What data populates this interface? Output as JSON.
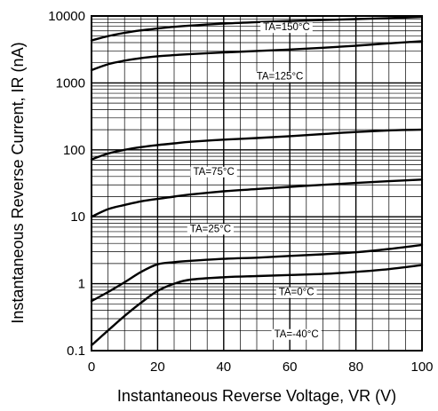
{
  "chart_data": {
    "type": "line",
    "title": "",
    "xlabel": "Instantaneous Reverse Voltage, VR (V)",
    "ylabel": "Instantaneous Reverse Current, IR (nA)",
    "xlim": [
      0,
      100
    ],
    "ylim": [
      0.1,
      10000
    ],
    "yscale": "log",
    "grid": true,
    "x_ticks": [
      0,
      20,
      40,
      60,
      80,
      100
    ],
    "x_tick_labels": [
      "0",
      "20",
      "40",
      "60",
      "80",
      "100"
    ],
    "y_ticks": [
      0.1,
      1,
      10,
      100,
      1000,
      10000
    ],
    "y_tick_labels": [
      "0.1",
      "1",
      "10",
      "100",
      "1000",
      "10000"
    ],
    "x": [
      0,
      5,
      10,
      15,
      20,
      25,
      30,
      40,
      50,
      60,
      70,
      80,
      90,
      100
    ],
    "series": [
      {
        "name": "TA=150°C",
        "label_display": "TA=150°C",
        "values": [
          4300,
          5000,
          5600,
          6100,
          6500,
          6900,
          7200,
          7700,
          8100,
          8400,
          8700,
          9000,
          9300,
          9700
        ]
      },
      {
        "name": "TA=125°C",
        "label_display": "TA=125°C",
        "values": [
          1550,
          1900,
          2150,
          2350,
          2500,
          2600,
          2700,
          2850,
          3000,
          3150,
          3350,
          3600,
          3900,
          4200
        ]
      },
      {
        "name": "TA=75°C",
        "label_display": "TA=75°C",
        "values": [
          72,
          88,
          100,
          110,
          118,
          125,
          132,
          142,
          150,
          160,
          172,
          185,
          195,
          200
        ]
      },
      {
        "name": "TA=25°C",
        "label_display": "TA=25°C",
        "values": [
          10,
          13,
          15,
          17,
          18.5,
          20,
          21.5,
          24,
          26,
          28,
          30,
          32,
          34,
          36
        ]
      },
      {
        "name": "TA=0°C",
        "label_display": "TA=0°C",
        "values": [
          0.55,
          0.75,
          1.05,
          1.5,
          1.95,
          2.1,
          2.2,
          2.35,
          2.45,
          2.6,
          2.75,
          2.95,
          3.3,
          3.8
        ]
      },
      {
        "name": "TA=-40°C",
        "label_display": "TA=-40°C",
        "values": [
          0.12,
          0.2,
          0.33,
          0.52,
          0.78,
          1.0,
          1.15,
          1.25,
          1.3,
          1.35,
          1.4,
          1.5,
          1.65,
          1.9
        ]
      }
    ]
  }
}
